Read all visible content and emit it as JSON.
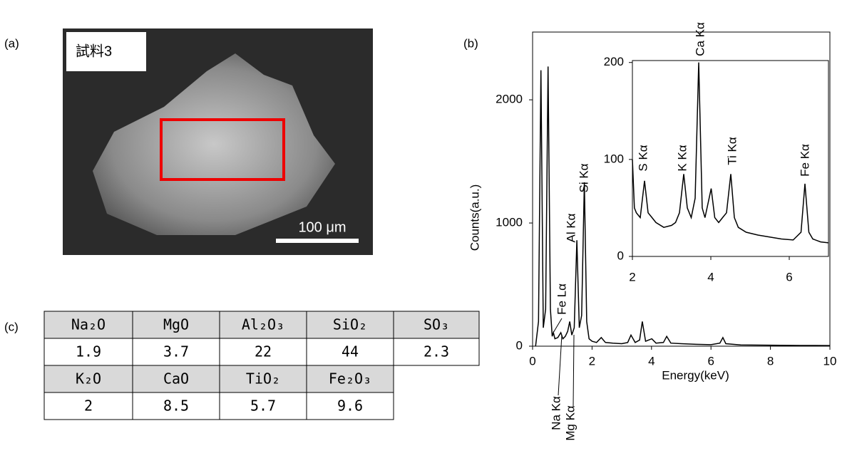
{
  "panel_labels": [
    "(a)",
    "(b)",
    "(c)"
  ],
  "image": {
    "sample_label": "試料3",
    "scale_bar": "100 μm"
  },
  "chart_data": [
    {
      "type": "line",
      "xlabel": "Energy(keV)",
      "ylabel": "Counts(a.u.)",
      "x": [
        0.1,
        0.2,
        0.28,
        0.36,
        0.44,
        0.52,
        0.6,
        0.66,
        0.7,
        0.75,
        0.85,
        0.95,
        1.02,
        1.1,
        1.18,
        1.25,
        1.32,
        1.4,
        1.49,
        1.57,
        1.65,
        1.74,
        1.82,
        1.9,
        2.0,
        2.15,
        2.31,
        2.45,
        2.7,
        3.0,
        3.2,
        3.31,
        3.45,
        3.6,
        3.69,
        3.8,
        4.01,
        4.15,
        4.4,
        4.51,
        4.65,
        5.0,
        5.5,
        6.0,
        6.3,
        6.4,
        6.5,
        7.0,
        8.0,
        9.0,
        10.0
      ],
      "series": [
        {
          "color": "#000000",
          "values": [
            0,
            200,
            2240,
            150,
            300,
            2270,
            300,
            80,
            110,
            60,
            70,
            110,
            60,
            80,
            120,
            200,
            90,
            150,
            860,
            150,
            250,
            1330,
            200,
            60,
            40,
            30,
            70,
            30,
            25,
            20,
            30,
            90,
            30,
            50,
            200,
            40,
            60,
            25,
            30,
            80,
            25,
            20,
            15,
            12,
            25,
            70,
            20,
            10,
            8,
            6,
            5
          ]
        }
      ],
      "xlim": [
        0,
        10
      ],
      "ylim": [
        0,
        2550
      ],
      "xticks": [
        0,
        2,
        4,
        6,
        8,
        10
      ],
      "yticks": [
        0,
        1000,
        2000
      ],
      "annotations": [
        "Fe Lα",
        "Al Kα",
        "Si Kα",
        "Na Kα",
        "Mg Kα"
      ]
    },
    {
      "type": "line",
      "x": [
        2.0,
        2.05,
        2.1,
        2.2,
        2.31,
        2.4,
        2.5,
        2.6,
        2.8,
        3.0,
        3.1,
        3.2,
        3.31,
        3.4,
        3.5,
        3.6,
        3.69,
        3.78,
        3.85,
        4.01,
        4.1,
        4.2,
        4.3,
        4.4,
        4.51,
        4.6,
        4.7,
        4.9,
        5.2,
        5.5,
        5.8,
        6.1,
        6.3,
        6.4,
        6.5,
        6.6,
        6.8,
        7.0
      ],
      "series": [
        {
          "color": "#000000",
          "values": [
            100,
            50,
            45,
            40,
            78,
            45,
            40,
            35,
            30,
            32,
            35,
            45,
            85,
            50,
            40,
            60,
            200,
            50,
            40,
            70,
            40,
            35,
            40,
            45,
            85,
            40,
            30,
            25,
            22,
            20,
            18,
            17,
            25,
            75,
            25,
            18,
            15,
            14
          ]
        }
      ],
      "xlim": [
        2,
        7
      ],
      "ylim": [
        0,
        202
      ],
      "xticks": [
        2,
        4,
        6
      ],
      "yticks": [
        0,
        100,
        200
      ],
      "annotations": [
        "S Kα",
        "K Kα",
        "Ca Kα",
        "Ti Kα",
        "Fe Kα"
      ]
    }
  ],
  "table": {
    "rows": [
      [
        "Na₂O",
        "MgO",
        "Al₂O₃",
        "SiO₂",
        "SO₃"
      ],
      [
        1.9,
        3.7,
        22,
        44,
        2.3
      ],
      [
        "K₂O",
        "CaO",
        "TiO₂",
        "Fe₂O₃"
      ],
      [
        2,
        8.5,
        5.7,
        9.6
      ]
    ]
  }
}
